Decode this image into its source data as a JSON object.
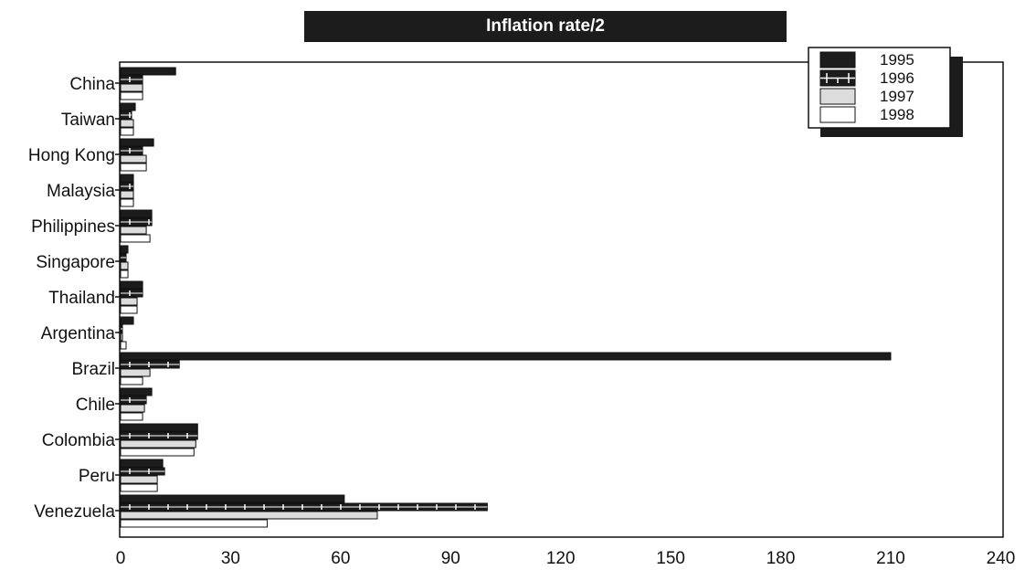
{
  "chart_data": {
    "type": "bar",
    "orientation": "horizontal",
    "title": "Inflation rate/2",
    "xlabel": "",
    "ylabel": "",
    "xlim": [
      0,
      240
    ],
    "xticks": [
      0,
      30,
      60,
      90,
      120,
      150,
      180,
      210,
      240
    ],
    "grid": false,
    "legend_position": "top-right",
    "categories": [
      "China",
      "Taiwan",
      "Hong Kong",
      "Malaysia",
      "Philippines",
      "Singapore",
      "Thailand",
      "Argentina",
      "Brazil",
      "Chile",
      "Colombia",
      "Peru",
      "Venezuela"
    ],
    "series": [
      {
        "name": "1995",
        "style": "solid-dark",
        "values": [
          15,
          4,
          9,
          3.5,
          8.5,
          2,
          6,
          3.5,
          210,
          8.5,
          21,
          11.5,
          61
        ]
      },
      {
        "name": "1996",
        "style": "dark-ticked",
        "values": [
          6,
          3,
          6,
          3.5,
          8.5,
          1.5,
          6,
          0.5,
          16,
          7,
          21,
          12,
          100
        ]
      },
      {
        "name": "1997",
        "style": "light-gray",
        "values": [
          6,
          3.5,
          7,
          3.5,
          7,
          2,
          4.5,
          0.5,
          8,
          6.5,
          20.5,
          10,
          70
        ]
      },
      {
        "name": "1998",
        "style": "white",
        "values": [
          6,
          3.5,
          7,
          3.5,
          8,
          2,
          4.5,
          1.5,
          6,
          6,
          20,
          10,
          40
        ]
      }
    ]
  }
}
